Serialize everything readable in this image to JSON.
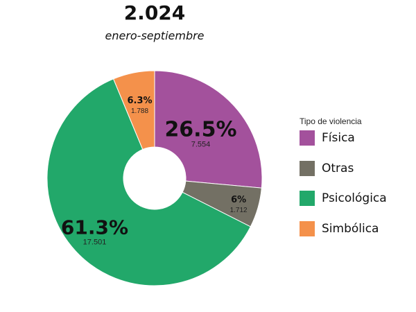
{
  "header": {
    "title": "2.024",
    "subtitle": "enero-septiembre"
  },
  "legend": {
    "title": "Tipo de violencia",
    "items": [
      {
        "label": "Física",
        "color": "#a3519c"
      },
      {
        "label": "Otras",
        "color": "#737064"
      },
      {
        "label": "Psicológica",
        "color": "#22a86a"
      },
      {
        "label": "Simbólica",
        "color": "#f4914b"
      }
    ]
  },
  "chart_data": {
    "type": "pie",
    "title": "2.024",
    "subtitle": "enero-septiembre",
    "donut": true,
    "legend_title": "Tipo de violencia",
    "legend_position": "right",
    "slices": [
      {
        "label": "Física",
        "value": 7554,
        "value_label": "7.554",
        "percent_label": "26.5%",
        "color": "#a3519c"
      },
      {
        "label": "Otras",
        "value": 1712,
        "value_label": "1.712",
        "percent_label": "6%",
        "color": "#737064"
      },
      {
        "label": "Psicológica",
        "value": 17501,
        "value_label": "17.501",
        "percent_label": "61.3%",
        "color": "#22a86a"
      },
      {
        "label": "Simbólica",
        "value": 1788,
        "value_label": "1.788",
        "percent_label": "6.3%",
        "color": "#f4914b"
      }
    ]
  }
}
